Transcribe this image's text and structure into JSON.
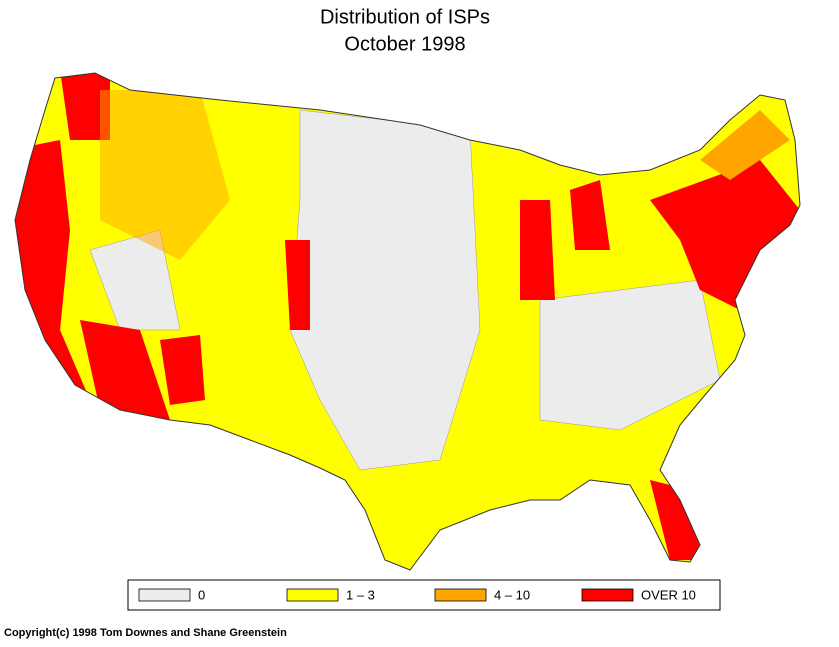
{
  "title": "Distribution of ISPs",
  "subtitle": "October 1998",
  "legend": [
    {
      "label": "0",
      "color": "#ececec"
    },
    {
      "label": "1 – 3",
      "color": "#ffff00"
    },
    {
      "label": "4 – 10",
      "color": "#ffa500"
    },
    {
      "label": "OVER 10",
      "color": "#ff0000"
    }
  ],
  "copyright": "Copyright(c) 1998 Tom Downes and Shane Greenstein"
}
